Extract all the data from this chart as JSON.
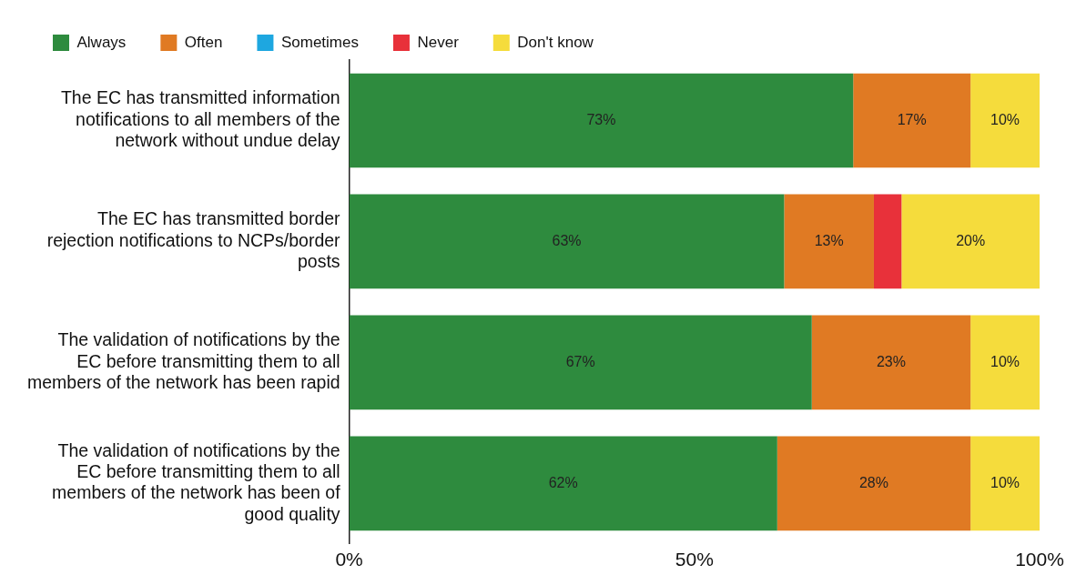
{
  "chart_data": {
    "type": "bar",
    "orientation": "horizontal",
    "stacked": true,
    "legend": "top left",
    "grid": false,
    "categories": [
      "The EC has transmitted information notifications to all members of the network without undue delay",
      "The EC has transmitted border rejection notifications to NCPs/border posts",
      "The validation of notifications by the EC before transmitting them to all members of the network has been rapid",
      "The validation of notifications by the EC before transmitting them to all members of the network has been of good quality"
    ],
    "series": [
      {
        "name": "Always",
        "color": "#2e8b3e",
        "values": [
          73,
          63,
          67,
          62
        ],
        "value_labels": [
          "73%",
          "63%",
          "67%",
          "62%"
        ]
      },
      {
        "name": "Often",
        "color": "#e07a23",
        "values": [
          17,
          13,
          23,
          28
        ],
        "value_labels": [
          "17%",
          "13%",
          "23%",
          "28%"
        ]
      },
      {
        "name": "Sometimes",
        "color": "#1ea7e0",
        "values": [
          0,
          0,
          0,
          0
        ],
        "value_labels": [
          null,
          null,
          null,
          null
        ]
      },
      {
        "name": "Never",
        "color": "#e8313a",
        "values": [
          0,
          4,
          0,
          0
        ],
        "value_labels": [
          null,
          null,
          null,
          null
        ]
      },
      {
        "name": "Don't know",
        "color": "#f5dc3c",
        "values": [
          10,
          20,
          10,
          10
        ],
        "value_labels": [
          "10%",
          "20%",
          "10%",
          "10%"
        ]
      }
    ],
    "xlim": [
      0,
      100
    ],
    "xticks": [
      {
        "value": 0,
        "label": "0%"
      },
      {
        "value": 50,
        "label": "50%"
      },
      {
        "value": 100,
        "label": "100%"
      }
    ]
  }
}
